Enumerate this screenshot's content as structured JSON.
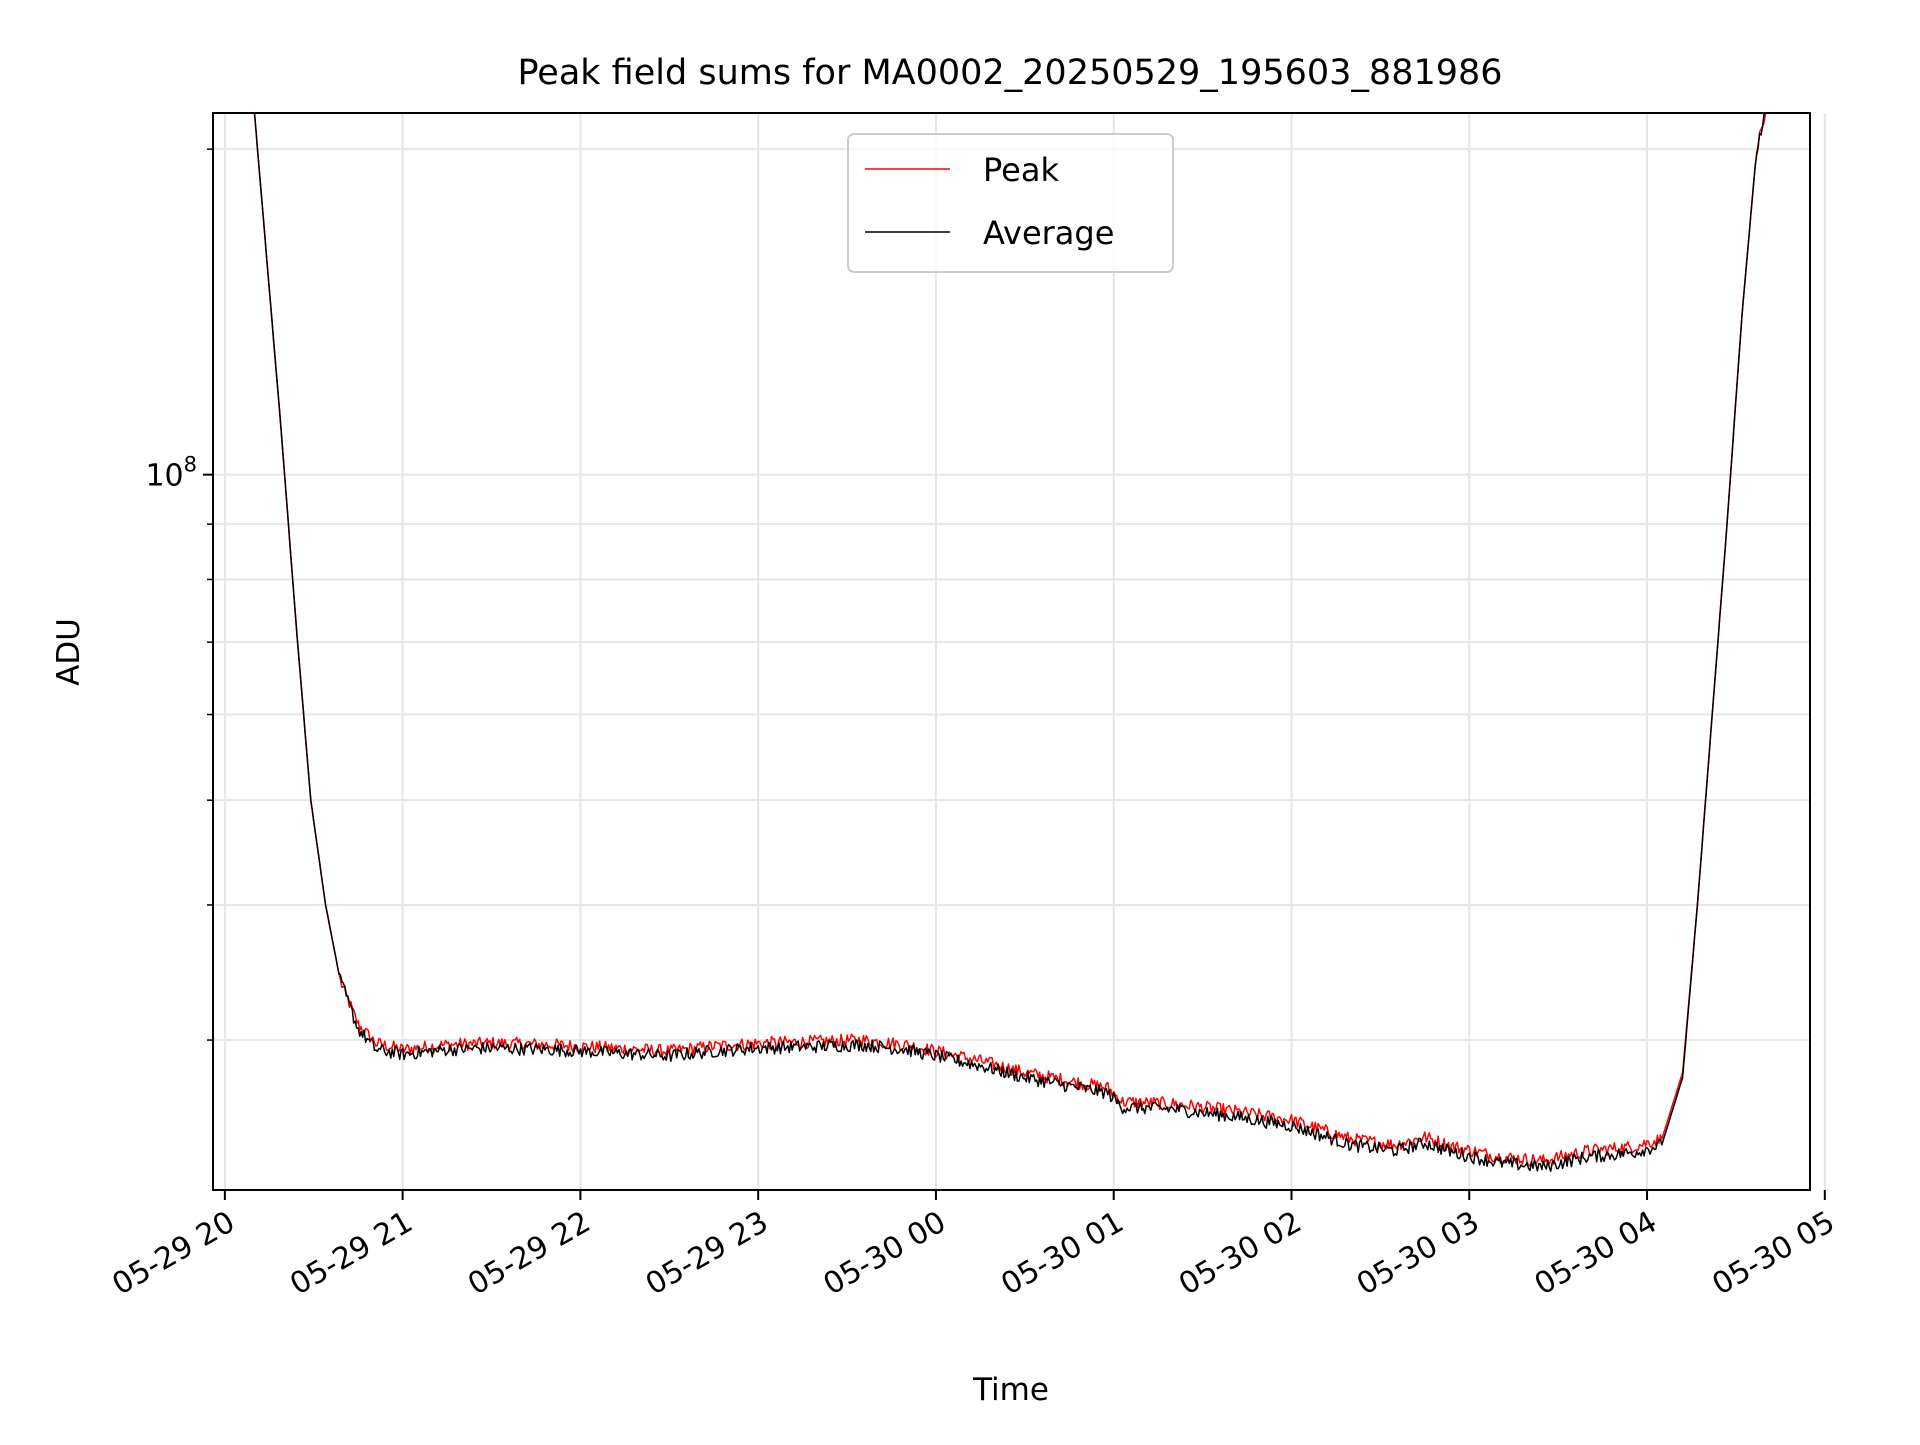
{
  "chart_data": {
    "type": "line",
    "title": "Peak field sums for MA0002_20250529_195603_881986",
    "xlabel": "Time",
    "ylabel": "ADU",
    "y_scale": "log",
    "grid": true,
    "legend_placement": "upper-center",
    "x_range": [
      "2025-05-29 19:56",
      "2025-05-30 04:55"
    ],
    "ylim": [
      21800000,
      216000000
    ],
    "x_tick_labels": [
      "05-29 20",
      "05-29 21",
      "05-29 22",
      "05-29 23",
      "05-30 00",
      "05-30 01",
      "05-30 02",
      "05-30 03",
      "05-30 04",
      "05-30 05"
    ],
    "y_tick_labels": [
      {
        "base": "10",
        "exp": "8"
      }
    ],
    "series": [
      {
        "name": "Peak",
        "color": "#ff0000",
        "points": [
          [
            "2025-05-29 20:10",
            216000000
          ],
          [
            "2025-05-29 20:14",
            160000000
          ],
          [
            "2025-05-29 20:19",
            110000000
          ],
          [
            "2025-05-29 20:24",
            73000000
          ],
          [
            "2025-05-29 20:29",
            50000000
          ],
          [
            "2025-05-29 20:34",
            40000000
          ],
          [
            "2025-05-29 20:39",
            34000000
          ],
          [
            "2025-05-29 20:45",
            31000000
          ],
          [
            "2025-05-29 20:51",
            29800000
          ],
          [
            "2025-05-29 21:00",
            29400000
          ],
          [
            "2025-05-29 21:15",
            29700000
          ],
          [
            "2025-05-29 21:30",
            29800000
          ],
          [
            "2025-05-29 21:50",
            29700000
          ],
          [
            "2025-05-29 22:10",
            29500000
          ],
          [
            "2025-05-29 22:30",
            29300000
          ],
          [
            "2025-05-29 22:45",
            29600000
          ],
          [
            "2025-05-29 23:00",
            29800000
          ],
          [
            "2025-05-29 23:20",
            29900000
          ],
          [
            "2025-05-29 23:35",
            30000000
          ],
          [
            "2025-05-29 23:50",
            29700000
          ],
          [
            "2025-05-30 00:00",
            29300000
          ],
          [
            "2025-05-30 00:15",
            28700000
          ],
          [
            "2025-05-30 00:30",
            28000000
          ],
          [
            "2025-05-30 00:45",
            27500000
          ],
          [
            "2025-05-30 00:58",
            27100000
          ],
          [
            "2025-05-30 01:03",
            26300000
          ],
          [
            "2025-05-30 01:20",
            26200000
          ],
          [
            "2025-05-30 01:40",
            25800000
          ],
          [
            "2025-05-30 02:00",
            25300000
          ],
          [
            "2025-05-30 02:20",
            24300000
          ],
          [
            "2025-05-30 02:35",
            24000000
          ],
          [
            "2025-05-30 02:45",
            24400000
          ],
          [
            "2025-05-30 02:55",
            23900000
          ],
          [
            "2025-05-30 03:10",
            23400000
          ],
          [
            "2025-05-30 03:25",
            23200000
          ],
          [
            "2025-05-30 03:40",
            23700000
          ],
          [
            "2025-05-30 03:55",
            23900000
          ],
          [
            "2025-05-30 04:05",
            24300000
          ],
          [
            "2025-05-30 04:12",
            28000000
          ],
          [
            "2025-05-30 04:17",
            40000000
          ],
          [
            "2025-05-30 04:22",
            60000000
          ],
          [
            "2025-05-30 04:27",
            90000000
          ],
          [
            "2025-05-30 04:32",
            140000000
          ],
          [
            "2025-05-30 04:37",
            200000000
          ],
          [
            "2025-05-30 04:40",
            216000000
          ]
        ]
      },
      {
        "name": "Average",
        "color": "#000000",
        "points": [
          [
            "2025-05-29 20:10",
            216000000
          ],
          [
            "2025-05-29 20:14",
            160000000
          ],
          [
            "2025-05-29 20:19",
            110000000
          ],
          [
            "2025-05-29 20:24",
            73000000
          ],
          [
            "2025-05-29 20:29",
            50000000
          ],
          [
            "2025-05-29 20:34",
            40000000
          ],
          [
            "2025-05-29 20:39",
            34000000
          ],
          [
            "2025-05-29 20:45",
            30700000
          ],
          [
            "2025-05-29 20:51",
            29400000
          ],
          [
            "2025-05-29 21:00",
            29100000
          ],
          [
            "2025-05-29 21:15",
            29400000
          ],
          [
            "2025-05-29 21:30",
            29500000
          ],
          [
            "2025-05-29 21:50",
            29400000
          ],
          [
            "2025-05-29 22:10",
            29200000
          ],
          [
            "2025-05-29 22:30",
            29000000
          ],
          [
            "2025-05-29 22:45",
            29300000
          ],
          [
            "2025-05-29 23:00",
            29500000
          ],
          [
            "2025-05-29 23:20",
            29600000
          ],
          [
            "2025-05-29 23:35",
            29700000
          ],
          [
            "2025-05-29 23:50",
            29400000
          ],
          [
            "2025-05-30 00:00",
            29000000
          ],
          [
            "2025-05-30 00:15",
            28400000
          ],
          [
            "2025-05-30 00:30",
            27700000
          ],
          [
            "2025-05-30 00:45",
            27200000
          ],
          [
            "2025-05-30 00:58",
            26800000
          ],
          [
            "2025-05-30 01:03",
            26000000
          ],
          [
            "2025-05-30 01:20",
            25900000
          ],
          [
            "2025-05-30 01:40",
            25500000
          ],
          [
            "2025-05-30 02:00",
            25000000
          ],
          [
            "2025-05-30 02:20",
            24000000
          ],
          [
            "2025-05-30 02:35",
            23700000
          ],
          [
            "2025-05-30 02:45",
            24100000
          ],
          [
            "2025-05-30 02:55",
            23600000
          ],
          [
            "2025-05-30 03:10",
            23100000
          ],
          [
            "2025-05-30 03:25",
            22900000
          ],
          [
            "2025-05-30 03:40",
            23400000
          ],
          [
            "2025-05-30 03:55",
            23600000
          ],
          [
            "2025-05-30 04:05",
            24000000
          ],
          [
            "2025-05-30 04:12",
            27700000
          ],
          [
            "2025-05-30 04:17",
            40000000
          ],
          [
            "2025-05-30 04:22",
            60000000
          ],
          [
            "2025-05-30 04:27",
            90000000
          ],
          [
            "2025-05-30 04:32",
            140000000
          ],
          [
            "2025-05-30 04:37",
            200000000
          ],
          [
            "2025-05-30 04:40",
            216000000
          ]
        ]
      }
    ]
  }
}
